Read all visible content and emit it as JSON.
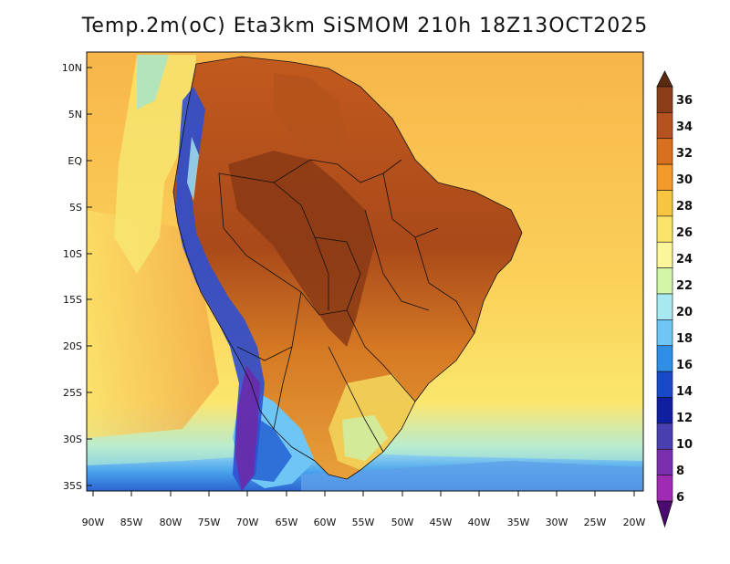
{
  "title": "Temp.2m(oC) Eta3km SiSMOM 210h 18Z13OCT2025",
  "lat_labels": [
    "10N",
    "5N",
    "EQ",
    "5S",
    "10S",
    "15S",
    "20S",
    "25S",
    "30S",
    "35S"
  ],
  "lon_labels": [
    "90W",
    "85W",
    "80W",
    "75W",
    "70W",
    "65W",
    "60W",
    "55W",
    "50W",
    "45W",
    "40W",
    "35W",
    "30W",
    "25W",
    "20W"
  ],
  "colorbar": {
    "labels": [
      "36",
      "34",
      "32",
      "30",
      "28",
      "26",
      "24",
      "22",
      "20",
      "18",
      "16",
      "14",
      "12",
      "10",
      "8",
      "6"
    ],
    "colors": [
      "#6b2a12",
      "#8b3d1a",
      "#b5521f",
      "#d9701f",
      "#f39a2b",
      "#f7c540",
      "#fbe36a",
      "#fbf69a",
      "#d3f5a8",
      "#a8e8f0",
      "#6fc6f5",
      "#2f8ee6",
      "#1749c8",
      "#101fa0",
      "#4a3fb0",
      "#7a2fb0",
      "#a02ab4",
      "#5a1080"
    ]
  },
  "map": {
    "ocean_color": "#fbd55a",
    "land_hot_color": "#a84d1c",
    "andes_color": "#2f4fd0",
    "south_cold_color": "#1f6fd8"
  }
}
